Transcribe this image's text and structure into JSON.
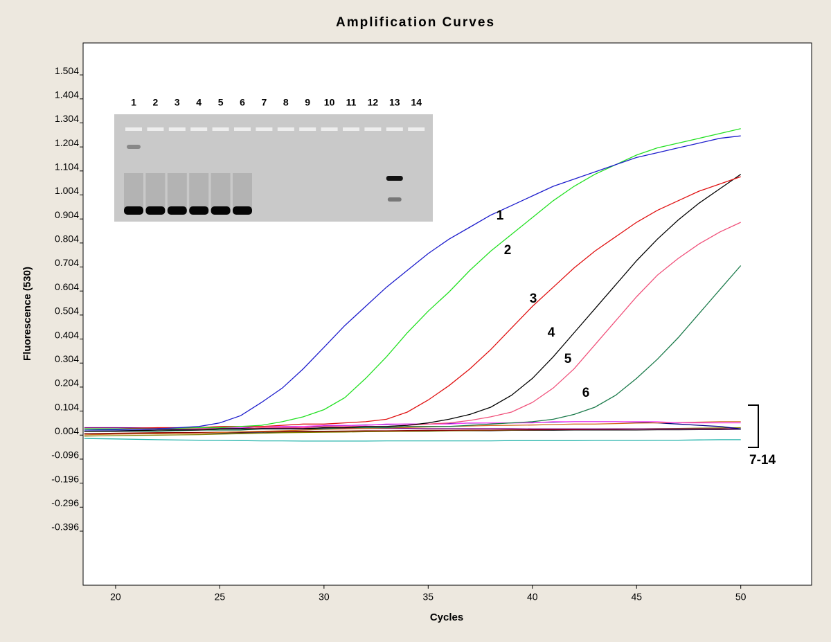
{
  "chart_data": {
    "type": "line",
    "title": "Amplification Curves",
    "x_label": "Cycles",
    "y_label": "Fluorescence (530)",
    "xlim": [
      18.44,
      53.4
    ],
    "xticks": [
      20,
      25,
      30,
      35,
      40,
      45,
      50
    ],
    "ylim": [
      -0.621,
      1.637
    ],
    "yticks": [
      1.504,
      1.404,
      1.304,
      1.204,
      1.104,
      1.004,
      0.904,
      0.804,
      0.704,
      0.604,
      0.504,
      0.404,
      0.304,
      0.204,
      0.104,
      0.004,
      -0.096,
      -0.196,
      -0.296,
      -0.396
    ],
    "x": [
      18.5,
      20,
      22,
      24,
      25,
      26,
      27,
      28,
      29,
      30,
      31,
      32,
      33,
      34,
      35,
      36,
      37,
      38,
      39,
      40,
      41,
      42,
      43,
      44,
      45,
      46,
      47,
      48,
      49,
      50
    ],
    "series": [
      {
        "name": "1",
        "color": "#1c1ccc",
        "values": [
          0.025,
          0.027,
          0.03,
          0.04,
          0.055,
          0.085,
          0.14,
          0.2,
          0.28,
          0.37,
          0.46,
          0.54,
          0.62,
          0.69,
          0.76,
          0.82,
          0.87,
          0.92,
          0.96,
          1.0,
          1.04,
          1.07,
          1.1,
          1.13,
          1.16,
          1.18,
          1.2,
          1.22,
          1.24,
          1.25
        ]
      },
      {
        "name": "2",
        "color": "#22e022",
        "values": [
          0.03,
          0.03,
          0.03,
          0.035,
          0.035,
          0.04,
          0.045,
          0.06,
          0.08,
          0.11,
          0.16,
          0.24,
          0.33,
          0.43,
          0.52,
          0.6,
          0.69,
          0.77,
          0.84,
          0.91,
          0.98,
          1.04,
          1.09,
          1.13,
          1.17,
          1.2,
          1.22,
          1.24,
          1.26,
          1.28
        ]
      },
      {
        "name": "3",
        "color": "#e01010",
        "values": [
          0.03,
          0.03,
          0.035,
          0.035,
          0.04,
          0.04,
          0.04,
          0.045,
          0.05,
          0.05,
          0.055,
          0.06,
          0.07,
          0.1,
          0.15,
          0.21,
          0.28,
          0.36,
          0.45,
          0.54,
          0.62,
          0.7,
          0.77,
          0.83,
          0.89,
          0.94,
          0.98,
          1.02,
          1.05,
          1.08
        ]
      },
      {
        "name": "4",
        "color": "#000000",
        "values": [
          0.02,
          0.02,
          0.025,
          0.025,
          0.03,
          0.03,
          0.03,
          0.03,
          0.03,
          0.035,
          0.035,
          0.04,
          0.04,
          0.045,
          0.055,
          0.07,
          0.09,
          0.12,
          0.17,
          0.24,
          0.33,
          0.43,
          0.53,
          0.63,
          0.73,
          0.82,
          0.9,
          0.97,
          1.03,
          1.09
        ]
      },
      {
        "name": "5",
        "color": "#f0507a",
        "values": [
          0.03,
          0.03,
          0.03,
          0.03,
          0.03,
          0.03,
          0.035,
          0.035,
          0.035,
          0.04,
          0.04,
          0.04,
          0.04,
          0.045,
          0.05,
          0.055,
          0.065,
          0.08,
          0.1,
          0.14,
          0.2,
          0.28,
          0.38,
          0.48,
          0.58,
          0.67,
          0.74,
          0.8,
          0.85,
          0.89
        ]
      },
      {
        "name": "6",
        "color": "#1a7a4a",
        "values": [
          0.02,
          0.02,
          0.02,
          0.025,
          0.025,
          0.025,
          0.03,
          0.03,
          0.03,
          0.03,
          0.035,
          0.035,
          0.035,
          0.04,
          0.04,
          0.04,
          0.045,
          0.05,
          0.055,
          0.06,
          0.07,
          0.09,
          0.12,
          0.17,
          0.24,
          0.32,
          0.41,
          0.51,
          0.61,
          0.71
        ]
      },
      {
        "color": "#ff40ff",
        "values": [
          0.03,
          0.03,
          0.03,
          0.035,
          0.035,
          0.035,
          0.04,
          0.04,
          0.04,
          0.045,
          0.045,
          0.045,
          0.05,
          0.05,
          0.05,
          0.05,
          0.055,
          0.055,
          0.055,
          0.055,
          0.06,
          0.06,
          0.06,
          0.06,
          0.06,
          0.06,
          0.055,
          0.055,
          0.055,
          0.055
        ]
      },
      {
        "color": "#d2691e",
        "values": [
          0.005,
          0.008,
          0.01,
          0.012,
          0.015,
          0.018,
          0.02,
          0.022,
          0.025,
          0.028,
          0.03,
          0.032,
          0.034,
          0.036,
          0.038,
          0.04,
          0.042,
          0.044,
          0.045,
          0.046,
          0.048,
          0.05,
          0.05,
          0.052,
          0.054,
          0.055,
          0.056,
          0.058,
          0.06,
          0.06
        ]
      },
      {
        "color": "#000080",
        "values": [
          0.02,
          0.022,
          0.025,
          0.028,
          0.03,
          0.032,
          0.034,
          0.036,
          0.04,
          0.042,
          0.044,
          0.046,
          0.048,
          0.05,
          0.05,
          0.052,
          0.054,
          0.055,
          0.055,
          0.056,
          0.058,
          0.06,
          0.06,
          0.06,
          0.058,
          0.055,
          0.05,
          0.045,
          0.04,
          0.03
        ]
      },
      {
        "color": "#800080",
        "values": [
          0.035,
          0.035,
          0.034,
          0.034,
          0.034,
          0.033,
          0.033,
          0.033,
          0.033,
          0.032,
          0.032,
          0.032,
          0.032,
          0.032,
          0.031,
          0.031,
          0.031,
          0.031,
          0.031,
          0.03,
          0.03,
          0.03,
          0.03,
          0.03,
          0.03,
          0.03,
          0.03,
          0.03,
          0.03,
          0.03
        ]
      },
      {
        "color": "#8b0000",
        "values": [
          0.01,
          0.012,
          0.014,
          0.015,
          0.016,
          0.017,
          0.018,
          0.019,
          0.02,
          0.02,
          0.021,
          0.022,
          0.022,
          0.023,
          0.024,
          0.024,
          0.025,
          0.025,
          0.026,
          0.026,
          0.027,
          0.027,
          0.028,
          0.028,
          0.029,
          0.029,
          0.03,
          0.03,
          0.03,
          0.03
        ]
      },
      {
        "color": "#808000",
        "values": [
          0.0,
          0.002,
          0.004,
          0.006,
          0.008,
          0.01,
          0.012,
          0.014,
          0.015,
          0.016,
          0.017,
          0.018,
          0.019,
          0.02,
          0.021,
          0.022,
          0.023,
          0.024,
          0.025,
          0.026,
          0.027,
          0.028,
          0.029,
          0.03,
          0.03,
          0.031,
          0.032,
          0.033,
          0.034,
          0.035
        ]
      },
      {
        "color": "#20b2aa",
        "values": [
          -0.01,
          -0.012,
          -0.015,
          -0.017,
          -0.018,
          -0.019,
          -0.02,
          -0.02,
          -0.021,
          -0.021,
          -0.021,
          -0.021,
          -0.02,
          -0.02,
          -0.02,
          -0.02,
          -0.02,
          -0.02,
          -0.019,
          -0.019,
          -0.019,
          -0.019,
          -0.018,
          -0.018,
          -0.018,
          -0.017,
          -0.017,
          -0.016,
          -0.015,
          -0.015
        ]
      },
      {
        "color": "#333333",
        "values": [
          0.01,
          0.01,
          0.01,
          0.012,
          0.012,
          0.014,
          0.014,
          0.016,
          0.016,
          0.018,
          0.018,
          0.02,
          0.02,
          0.02,
          0.02,
          0.022,
          0.022,
          0.022,
          0.024,
          0.024,
          0.024,
          0.025,
          0.025,
          0.025,
          0.025,
          0.026,
          0.026,
          0.027,
          0.027,
          0.028
        ]
      }
    ],
    "group_label": "7-14",
    "gel_lanes": [
      "1",
      "2",
      "3",
      "4",
      "5",
      "6",
      "7",
      "8",
      "9",
      "10",
      "11",
      "12",
      "13",
      "14"
    ]
  }
}
